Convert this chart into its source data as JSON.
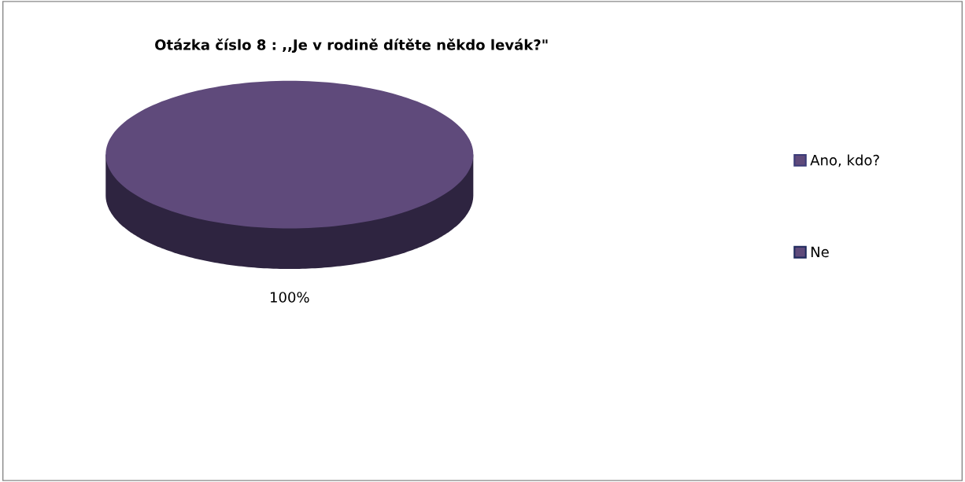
{
  "chart_data": {
    "type": "pie",
    "title": "Otázka číslo 8 : ,,Je v rodině dítěte někdo levák?\"",
    "categories": [
      "Ano, kdo?",
      "Ne"
    ],
    "values": [
      0,
      100
    ],
    "colors": [
      "#5f4a7b",
      "#5f4a7b"
    ],
    "value_labels": [
      null,
      "100%"
    ],
    "legend": "right"
  }
}
